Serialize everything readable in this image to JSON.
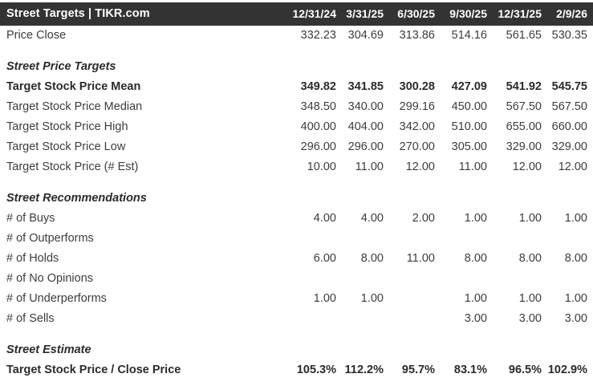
{
  "header": {
    "title": "Street Targets | TIKR.com",
    "columns": [
      "12/31/24",
      "3/31/25",
      "6/30/25",
      "9/30/25",
      "12/31/25",
      "2/9/26"
    ]
  },
  "colors": {
    "header_bg": "#333333",
    "header_text": "#ffffff",
    "body_text": "#3d3d3d",
    "bold_text": "#2b2b2b",
    "background": "#ffffff"
  },
  "table": {
    "rows": [
      {
        "type": "data",
        "bold": false,
        "label": "Price Close",
        "values": [
          "332.23",
          "304.69",
          "313.86",
          "514.16",
          "561.65",
          "530.35"
        ]
      },
      {
        "type": "spacer"
      },
      {
        "type": "section",
        "label": "Street Price Targets"
      },
      {
        "type": "data",
        "bold": true,
        "label": "Target Stock Price Mean",
        "values": [
          "349.82",
          "341.85",
          "300.28",
          "427.09",
          "541.92",
          "545.75"
        ]
      },
      {
        "type": "data",
        "bold": false,
        "label": "Target Stock Price Median",
        "values": [
          "348.50",
          "340.00",
          "299.16",
          "450.00",
          "567.50",
          "567.50"
        ]
      },
      {
        "type": "data",
        "bold": false,
        "label": "Target Stock Price High",
        "values": [
          "400.00",
          "404.00",
          "342.00",
          "510.00",
          "655.00",
          "660.00"
        ]
      },
      {
        "type": "data",
        "bold": false,
        "label": "Target Stock Price Low",
        "values": [
          "296.00",
          "296.00",
          "270.00",
          "305.00",
          "329.00",
          "329.00"
        ]
      },
      {
        "type": "data",
        "bold": false,
        "label": "Target Stock Price (# Est)",
        "values": [
          "10.00",
          "11.00",
          "12.00",
          "11.00",
          "12.00",
          "12.00"
        ]
      },
      {
        "type": "spacer"
      },
      {
        "type": "section",
        "label": "Street Recommendations"
      },
      {
        "type": "data",
        "bold": false,
        "label": "# of Buys",
        "values": [
          "4.00",
          "4.00",
          "2.00",
          "1.00",
          "1.00",
          "1.00"
        ]
      },
      {
        "type": "data",
        "bold": false,
        "label": "# of Outperforms",
        "values": [
          "",
          "",
          "",
          "",
          "",
          ""
        ]
      },
      {
        "type": "data",
        "bold": false,
        "label": "# of Holds",
        "values": [
          "6.00",
          "8.00",
          "11.00",
          "8.00",
          "8.00",
          "8.00"
        ]
      },
      {
        "type": "data",
        "bold": false,
        "label": "# of No Opinions",
        "values": [
          "",
          "",
          "",
          "",
          "",
          ""
        ]
      },
      {
        "type": "data",
        "bold": false,
        "label": "# of Underperforms",
        "values": [
          "1.00",
          "1.00",
          "",
          "1.00",
          "1.00",
          "1.00"
        ]
      },
      {
        "type": "data",
        "bold": false,
        "label": "# of Sells",
        "values": [
          "",
          "",
          "",
          "3.00",
          "3.00",
          "3.00"
        ]
      },
      {
        "type": "spacer"
      },
      {
        "type": "section",
        "label": "Street Estimate"
      },
      {
        "type": "data",
        "bold": true,
        "label": "Target Stock Price / Close Price",
        "values": [
          "105.3%",
          "112.2%",
          "95.7%",
          "83.1%",
          "96.5%",
          "102.9%"
        ]
      }
    ]
  }
}
